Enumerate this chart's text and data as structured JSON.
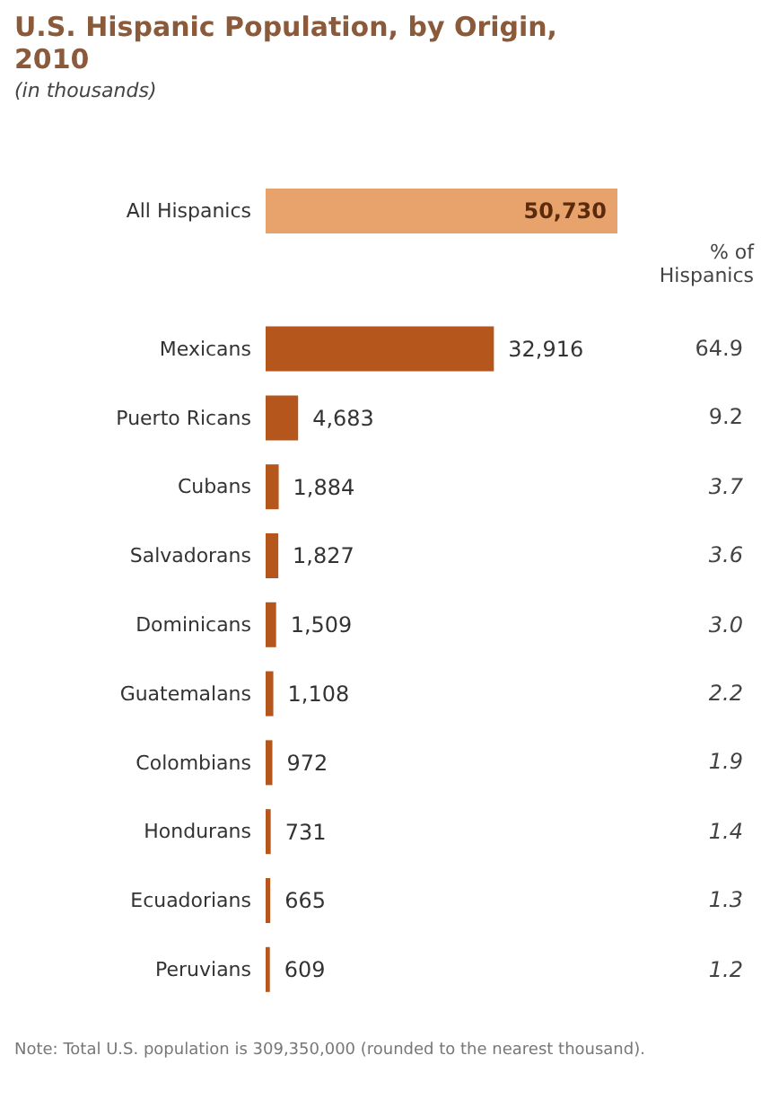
{
  "chart_data": {
    "type": "bar",
    "orientation": "horizontal",
    "title": "U.S. Hispanic Population, by Origin, 2010",
    "subtitle": "(in thousands)",
    "categories": [
      "All Hispanics",
      "Mexicans",
      "Puerto Ricans",
      "Cubans",
      "Salvadorans",
      "Dominicans",
      "Guatemalans",
      "Colombians",
      "Hondurans",
      "Ecuadorians",
      "Peruvians"
    ],
    "values": [
      50730,
      32916,
      4683,
      1884,
      1827,
      1509,
      1108,
      972,
      731,
      665,
      609
    ],
    "value_labels": [
      "50,730",
      "32,916",
      "4,683",
      "1,884",
      "1,827",
      "1,509",
      "1,108",
      "972",
      "731",
      "665",
      "609"
    ],
    "colors": [
      "#e8a26c",
      "#b5561c",
      "#b5561c",
      "#b5561c",
      "#b5561c",
      "#b5561c",
      "#b5561c",
      "#b5561c",
      "#b5561c",
      "#b5561c",
      "#b5561c"
    ],
    "annotations": [
      "% of Hispanics",
      "64.9",
      "9.2",
      "3.7",
      "3.6",
      "3.0",
      "2.2",
      "1.9",
      "1.4",
      "1.3",
      "1.2",
      "Note: Total U.S. population is 309,350,000 (rounded to the nearest thousand)."
    ]
  }
}
